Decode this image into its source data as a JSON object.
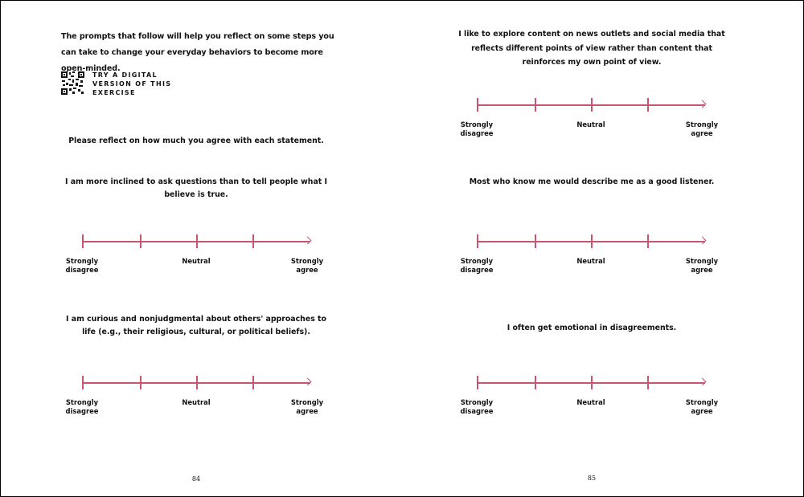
{
  "left_page": {
    "intro": "The prompts that follow will help you reflect on some steps you can take to change your everyday behaviors to become more open-minded.",
    "digital_link": [
      "TRY A DIGITAL",
      "VERSION OF THIS",
      "EXERCISE"
    ],
    "instruction": "Please reflect on how much you agree with each statement.",
    "statements": [
      "I am more inclined to ask questions than to tell people what I believe is true.",
      "I am curious and nonjudgmental about others' approaches to life (e.g., their religious, cultural, or political beliefs)."
    ],
    "page_number": "84"
  },
  "right_page": {
    "statements": [
      "I like to explore content on news outlets and social media that reflects different points of view rather than content that reinforces my own point of view.",
      "Most who know me would describe me as a good listener.",
      "I often get emotional in disagreements."
    ],
    "page_number": "85"
  },
  "scale": {
    "left_label": [
      "Strongly",
      "disagree"
    ],
    "middle_label": "Neutral",
    "right_label": [
      "Strongly",
      "agree"
    ],
    "points": 5,
    "color": "#c9566e"
  }
}
